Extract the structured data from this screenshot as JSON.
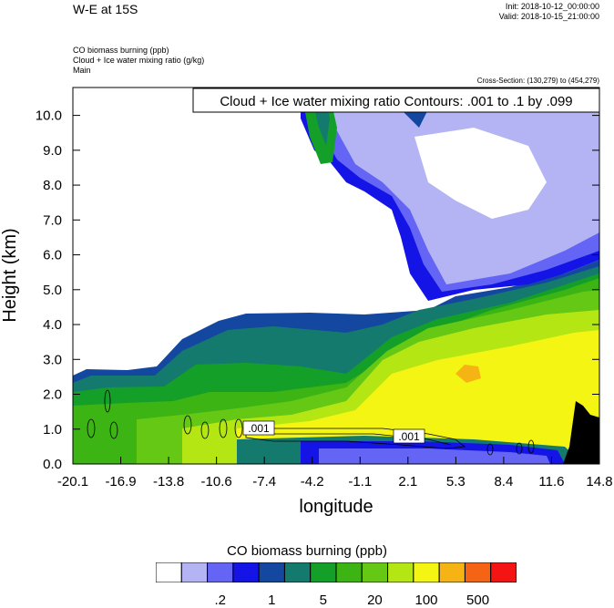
{
  "header": {
    "title": "W-E at 15S",
    "init": "Init: 2018-10-12_00:00:00",
    "valid": "Valid: 2018-10-15_21:00:00",
    "field_lines": [
      "CO biomass burning   (ppb)",
      "Cloud + Ice water mixing ratio   (g/kg)",
      "Main"
    ],
    "cross_section": "Cross-Section: (130,279) to (454,279)"
  },
  "chart_data": {
    "type": "heatmap",
    "title": "",
    "xlabel": "longitude",
    "ylabel": "Height (km)",
    "x_ticks": [
      "-20.1",
      "-16.9",
      "-13.8",
      "-10.6",
      "-7.4",
      "-4.2",
      "-1.1",
      "2.1",
      "5.3",
      "8.4",
      "11.6",
      "14.8"
    ],
    "xlim": [
      -20.1,
      14.8
    ],
    "y_ticks": [
      "0.0",
      "1.0",
      "2.0",
      "3.0",
      "4.0",
      "5.0",
      "6.0",
      "7.0",
      "8.0",
      "9.0",
      "10.0"
    ],
    "ylim": [
      0,
      10.8
    ],
    "contour_info": "Cloud + Ice water mixing ratio Contours: .001 to .1 by .099",
    "contour_labels": [
      ".001",
      ".001"
    ],
    "colorbar": {
      "title": "CO biomass burning  (ppb)",
      "colors": [
        "#ffffff",
        "#b4b4f5",
        "#6464f5",
        "#1414e6",
        "#1448a0",
        "#147a6e",
        "#14a028",
        "#3cb414",
        "#64c814",
        "#b4e614",
        "#f5f514",
        "#f5b414",
        "#f56414",
        "#f51414"
      ],
      "labels": [
        ".2",
        "1",
        "5",
        "20",
        "100",
        "500"
      ]
    }
  }
}
